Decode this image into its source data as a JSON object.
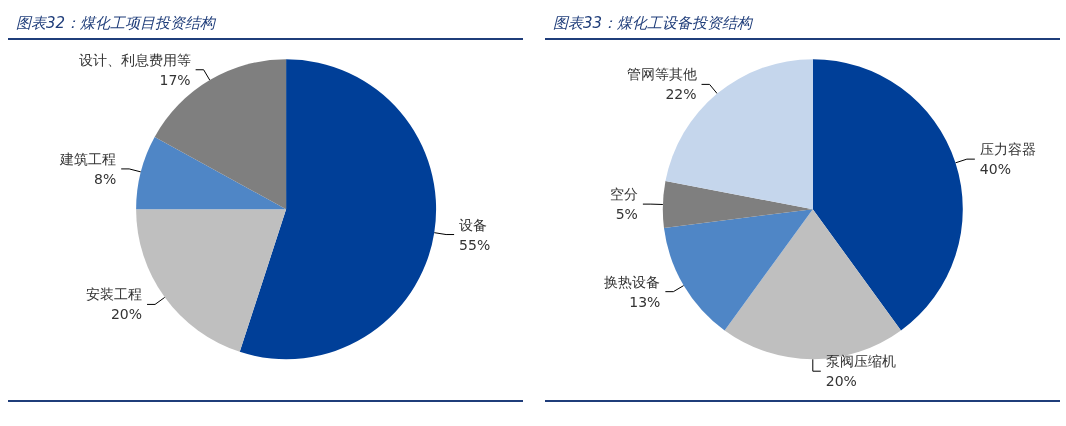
{
  "chart_data": [
    {
      "type": "pie",
      "title": "图表32：煤化工项目投资结构",
      "categories": [
        "设备",
        "安装工程",
        "建筑工程",
        "设计、利息费用等"
      ],
      "values": [
        55,
        20,
        8,
        17
      ],
      "value_labels": [
        "55%",
        "20%",
        "8%",
        "17%"
      ],
      "colors": [
        "#003f98",
        "#bfbfbf",
        "#4f86c6",
        "#7f7f7f"
      ],
      "legend": false
    },
    {
      "type": "pie",
      "title": "图表33：煤化工设备投资结构",
      "categories": [
        "压力容器",
        "泵阀压缩机",
        "换热设备",
        "空分",
        "管网等其他"
      ],
      "values": [
        40,
        20,
        13,
        5,
        22
      ],
      "value_labels": [
        "40%",
        "20%",
        "13%",
        "5%",
        "22%"
      ],
      "colors": [
        "#003f98",
        "#bfbfbf",
        "#4f86c6",
        "#7f7f7f",
        "#c5d6ec"
      ],
      "legend": false
    }
  ]
}
